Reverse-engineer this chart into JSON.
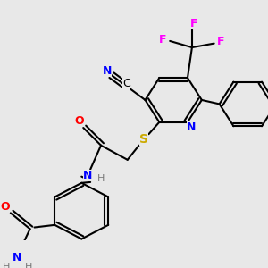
{
  "bg_color": "#e8e8e8",
  "atom_colors": {
    "C": "#000000",
    "N": "#0000ff",
    "O": "#ff0000",
    "S": "#ccaa00",
    "F": "#ff00ff",
    "H": "#777777"
  }
}
